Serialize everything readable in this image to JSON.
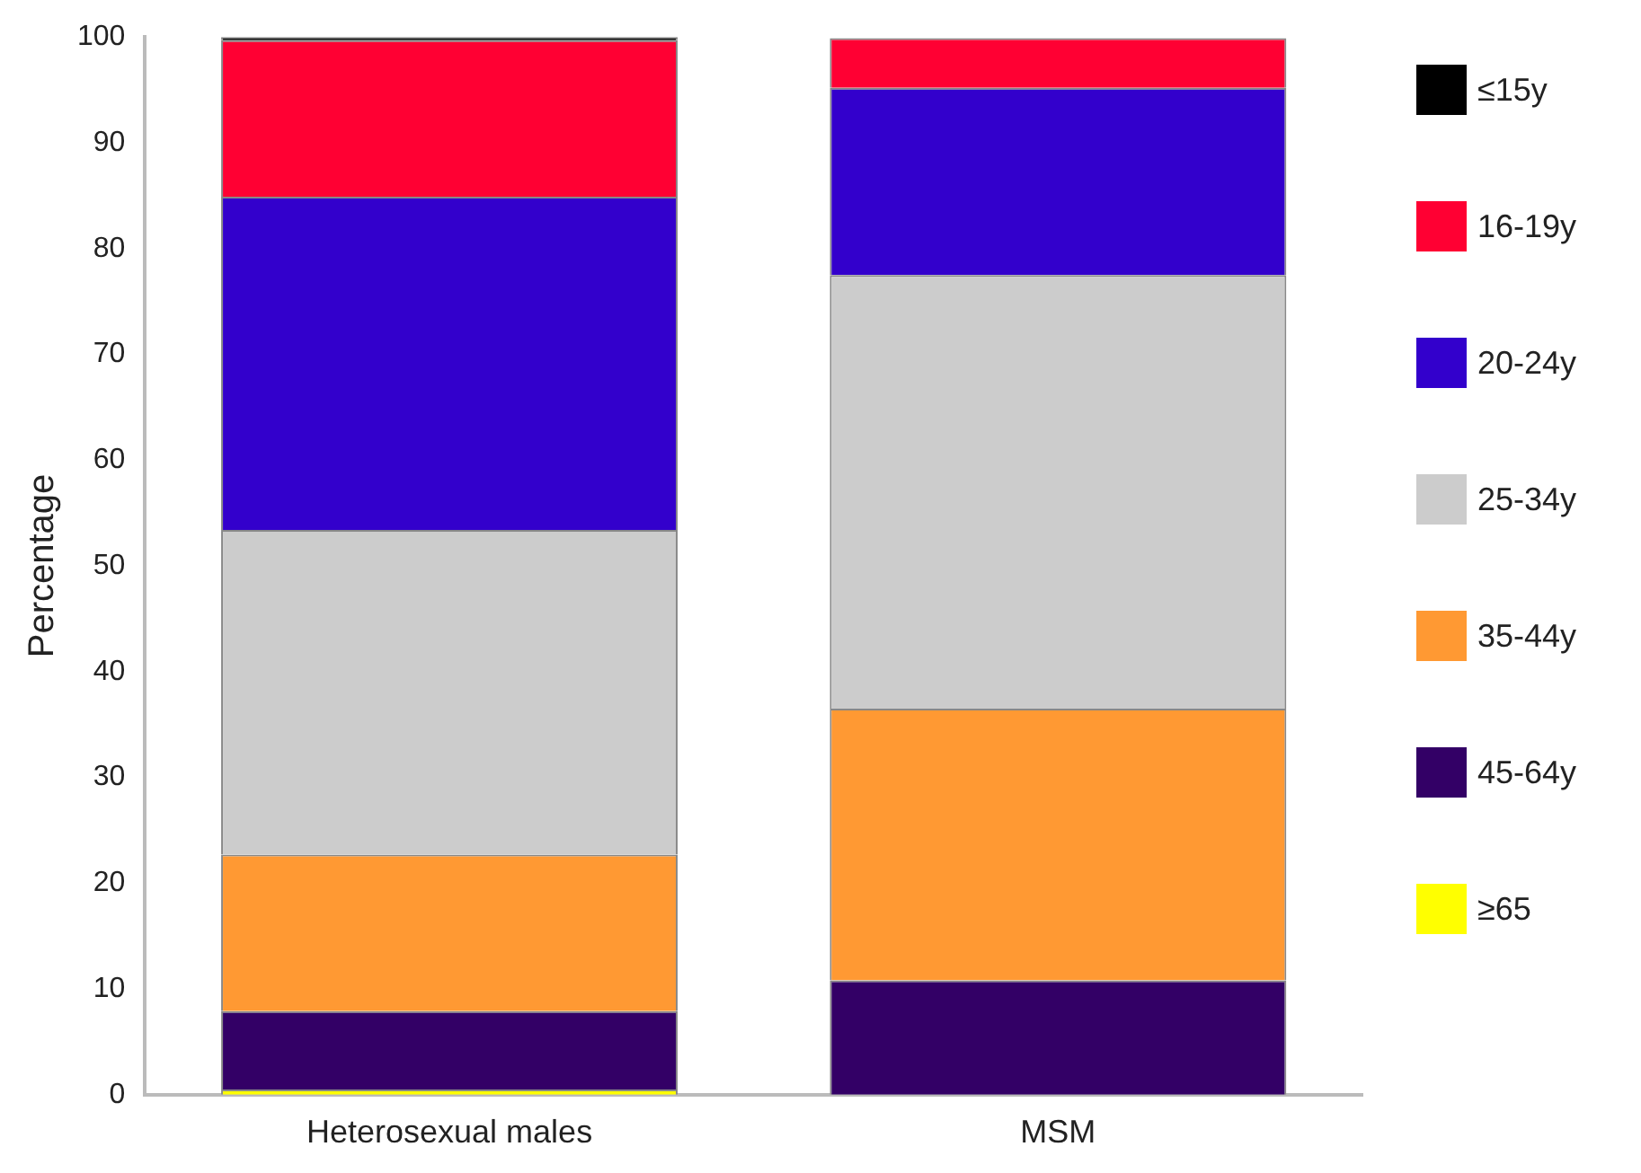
{
  "chart_data": {
    "type": "bar",
    "stacked": true,
    "ylabel": "Percentage",
    "categories": [
      "Heterosexual males",
      "MSM"
    ],
    "series": [
      {
        "name": "≥65",
        "color": "#ffff00",
        "values": [
          0.5,
          0
        ]
      },
      {
        "name": "45-64y",
        "color": "#330066",
        "values": [
          7.4,
          10.8
        ]
      },
      {
        "name": "35-44y",
        "color": "#ff9933",
        "values": [
          14.8,
          25.7
        ]
      },
      {
        "name": "25-34y",
        "color": "#cccccc",
        "values": [
          30.7,
          41.0
        ]
      },
      {
        "name": "20-24y",
        "color": "#3300cc",
        "values": [
          31.5,
          17.7
        ]
      },
      {
        "name": "16-19y",
        "color": "#ff0033",
        "values": [
          14.8,
          4.7
        ]
      },
      {
        "name": "≤15y",
        "color": "#000000",
        "values": [
          0.3,
          0
        ]
      }
    ],
    "ylim": [
      0,
      100
    ],
    "yticks": [
      0,
      10,
      20,
      30,
      40,
      50,
      60,
      70,
      80,
      90,
      100
    ],
    "grid": false,
    "legend": "right"
  }
}
